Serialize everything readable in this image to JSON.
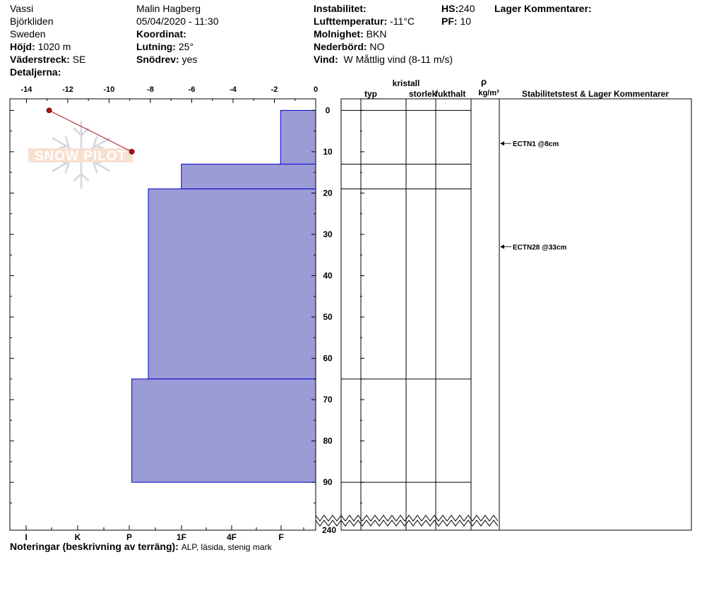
{
  "header": {
    "location": "Vassi",
    "region": "Björkliden",
    "country": "Sweden",
    "elevation_label": "Höjd:",
    "elevation": "1020 m",
    "aspect_label": "Väderstreck:",
    "aspect": "SE",
    "details_label": "Detaljerna:",
    "observer": "Malin Hagberg",
    "datetime": "05/04/2020 - 11:30",
    "coord_label": "Koordinat:",
    "slope_label": "Lutning:",
    "slope": "25°",
    "drift_label": "Snödrev:",
    "drift": "yes",
    "instability_label": "Instabilitet:",
    "airtemp_label": "Lufttemperatur:",
    "airtemp": "-11°C",
    "sky_label": "Molnighet:",
    "sky": "BKN",
    "precip_label": "Nederbörd:",
    "precip": "NO",
    "wind_label": "Vind:",
    "wind": "W Måttlig vind (8-11 m/s)",
    "hs_label": "HS:",
    "hs": "240",
    "pf_label": "PF:",
    "pf": "10",
    "layer_comments_label": "Lager Kommentarer:"
  },
  "columns": {
    "crystal": "kristall",
    "type": "typ",
    "size": "storlek",
    "moisture": "fukthalt",
    "rho": "ρ",
    "density_unit": "kg/m³",
    "stability": "Stabilitetstest & Lager Kommentarer"
  },
  "notes": {
    "label": "Noteringar (beskrivning av terräng):",
    "value": "ALP, läsida, stenig mark"
  },
  "watermark": "SNOW PILOT",
  "colors": {
    "layer_fill": "#9b9bd6",
    "layer_edge": "#0000cc",
    "temp_line": "#aa1111"
  },
  "chart_data": {
    "type": "bar",
    "temperature_axis": {
      "ticks": [
        -14,
        -12,
        -10,
        -8,
        -6,
        -4,
        -2,
        0
      ],
      "range": [
        -14.8,
        0
      ]
    },
    "hardness_axis": {
      "ticks": [
        "I",
        "K",
        "P",
        "1F",
        "4F",
        "F"
      ]
    },
    "depth_axis": {
      "ticks": [
        0,
        10,
        20,
        30,
        40,
        50,
        60,
        70,
        80,
        90
      ],
      "range": [
        -2.8,
        98
      ],
      "bottom_label": "240"
    },
    "layers": [
      {
        "top": 0,
        "bottom": 13,
        "hardness": 1.7
      },
      {
        "top": 13,
        "bottom": 19,
        "hardness": 6.5
      },
      {
        "top": 19,
        "bottom": 65,
        "hardness": 8.1
      },
      {
        "top": 65,
        "bottom": 90,
        "hardness": 8.9
      }
    ],
    "temperature_profile": [
      {
        "depth": 0,
        "temp": -12.9
      },
      {
        "depth": 10,
        "temp": -8.9
      }
    ],
    "stability_tests": [
      {
        "depth": 8,
        "label": "ECTN1 @8cm"
      },
      {
        "depth": 33,
        "label": "ECTN28 @33cm"
      }
    ]
  }
}
